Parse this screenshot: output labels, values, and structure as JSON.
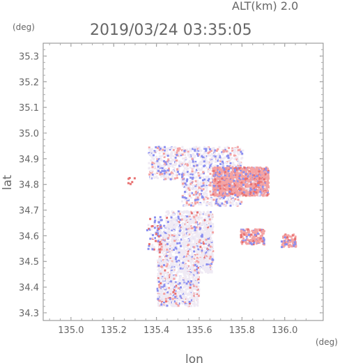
{
  "header": {
    "alt_label": "ALT(km) 2.0",
    "timestamp": "2019/03/24 03:35:05"
  },
  "chart_data": {
    "type": "heatmap",
    "title": "2019/03/24 03:35:05",
    "subtitle": "ALT(km) 2.0",
    "xlabel": "lon",
    "ylabel": "lat",
    "x_unit": "(deg)",
    "y_unit": "(deg)",
    "xlim": [
      134.87,
      136.18
    ],
    "ylim": [
      34.27,
      35.35
    ],
    "x_ticks": [
      135.0,
      135.2,
      135.4,
      135.6,
      135.8,
      136.0
    ],
    "x_tick_labels": [
      "135.0",
      "135.2",
      "135.4",
      "135.6",
      "135.8",
      "136.0"
    ],
    "y_ticks": [
      34.3,
      34.4,
      34.5,
      34.6,
      34.7,
      34.8,
      34.9,
      35.0,
      35.1,
      35.2,
      35.3
    ],
    "y_tick_labels": [
      "34.3",
      "34.4",
      "34.5",
      "34.6",
      "34.7",
      "34.8",
      "34.9",
      "35.0",
      "35.1",
      "35.2",
      "35.3"
    ],
    "grid": false,
    "colors": {
      "positive": "#f4a3a3",
      "positive_strong": "#e87070",
      "negative": "#8a8ef0",
      "near_zero": "#efeaf4"
    },
    "regions": [
      {
        "name": "northern-patch",
        "lon": [
          135.35,
          135.95
        ],
        "lat": [
          34.72,
          34.96
        ]
      },
      {
        "name": "red-band",
        "lon": [
          135.66,
          135.92
        ],
        "lat": [
          34.76,
          34.88
        ]
      },
      {
        "name": "southern-patch",
        "lon": [
          135.4,
          135.66
        ],
        "lat": [
          34.33,
          34.72
        ]
      },
      {
        "name": "east-streaks",
        "lon": [
          135.79,
          136.06
        ],
        "lat": [
          34.55,
          34.64
        ]
      }
    ]
  }
}
